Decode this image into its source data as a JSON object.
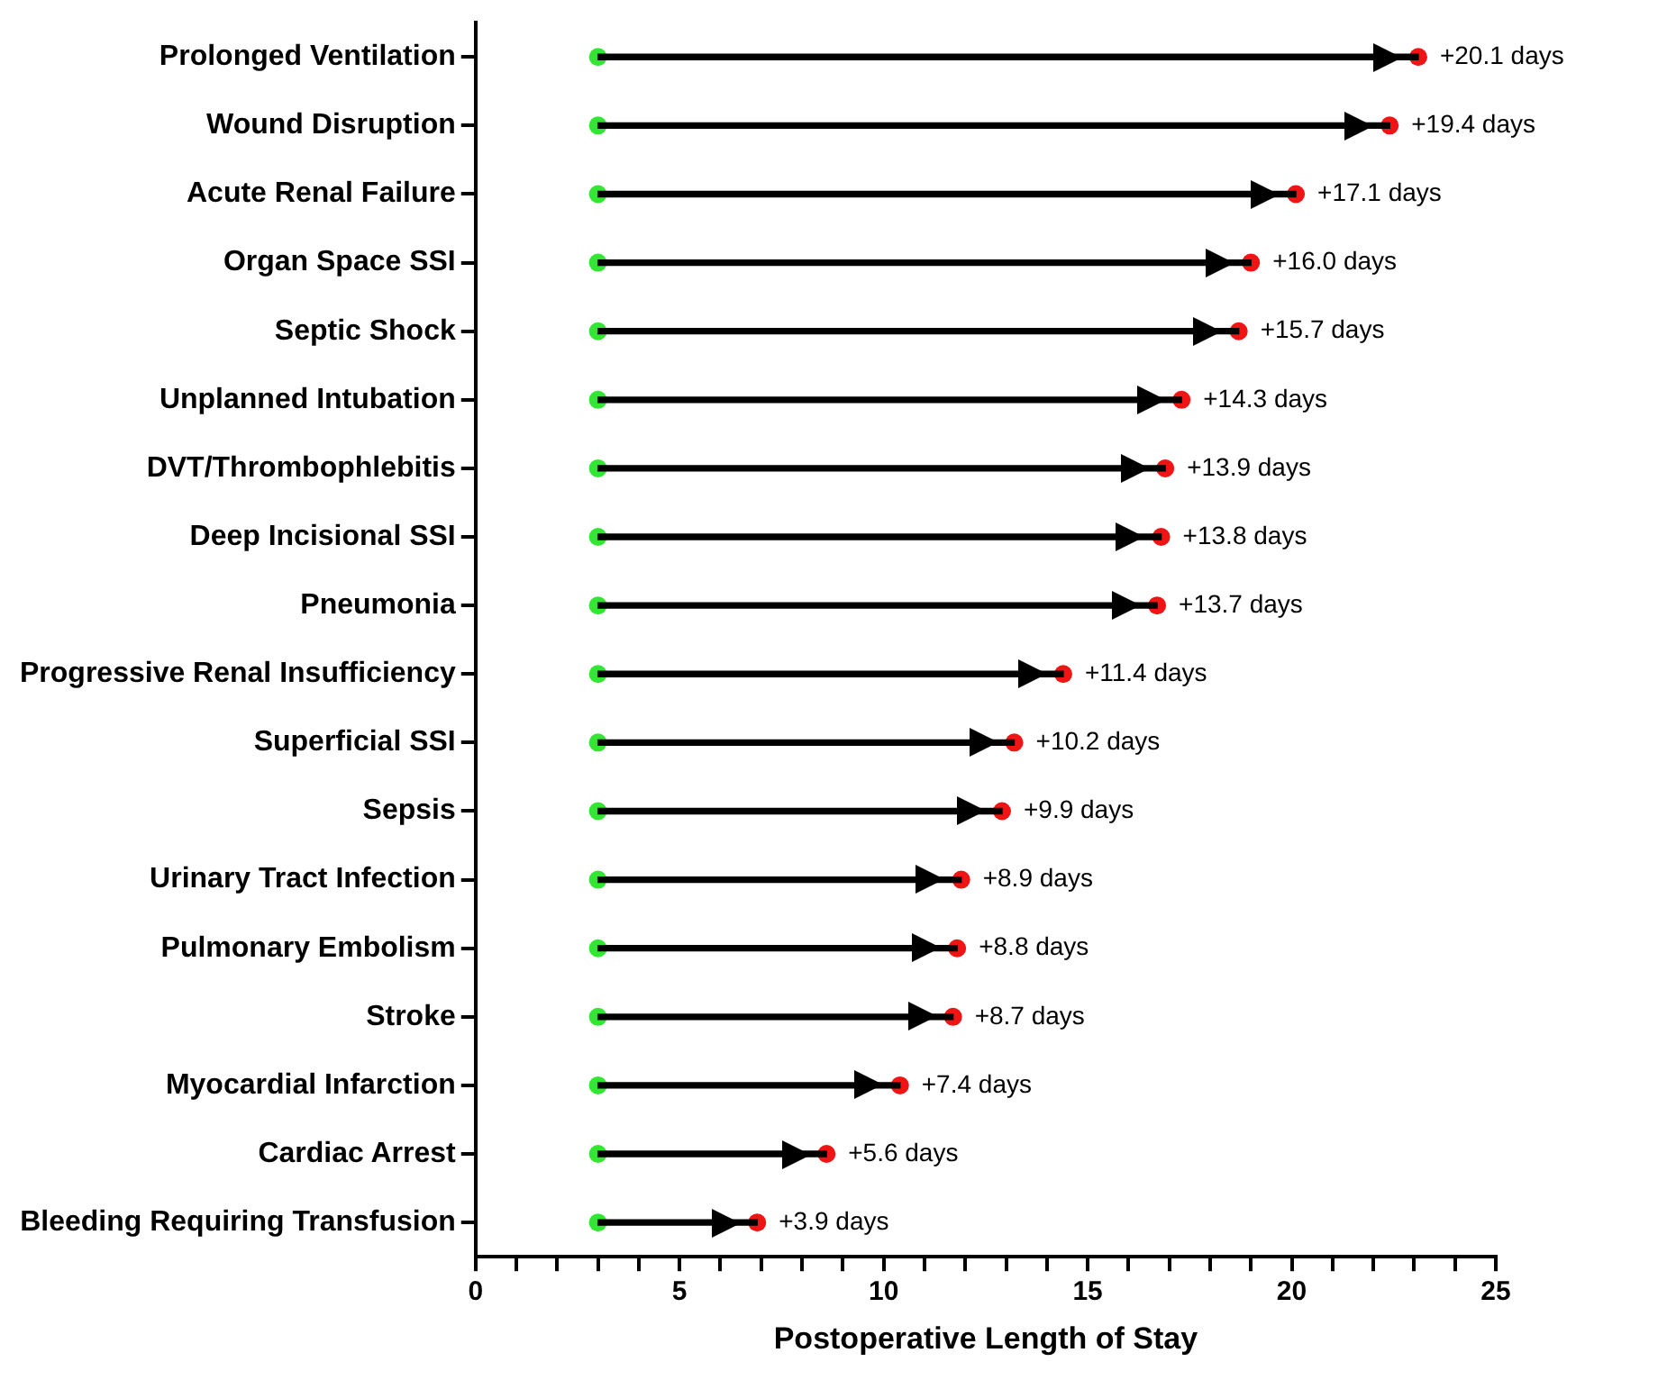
{
  "chart_data": {
    "type": "bar",
    "orientation": "horizontal",
    "xlabel": "Postoperative Length of Stay",
    "categories": [
      "Prolonged Ventilation",
      "Wound Disruption",
      "Acute Renal Failure",
      "Organ Space SSI",
      "Septic Shock",
      "Unplanned Intubation",
      "DVT/Thrombophlebitis",
      "Deep Incisional SSI",
      "Pneumonia",
      "Progressive Renal Insufficiency",
      "Superficial SSI",
      "Sepsis",
      "Urinary Tract Infection",
      "Pulmonary Embolism",
      "Stroke",
      "Myocardial Infarction",
      "Cardiac Arrest",
      "Bleeding Requiring Transfusion"
    ],
    "series": [
      {
        "type": "bar",
        "color": "#000000",
        "base": [
          3,
          3,
          3,
          3,
          3,
          3,
          3,
          3,
          3,
          3,
          3,
          3,
          3,
          3,
          3,
          3,
          3,
          3
        ],
        "values": [
          20.1,
          19.4,
          17.1,
          16.0,
          15.7,
          14.3,
          13.9,
          13.8,
          13.7,
          11.4,
          10.2,
          9.9,
          8.9,
          8.8,
          8.7,
          7.4,
          5.6,
          3.9
        ],
        "value_labels": [
          "+20.1 days",
          "+19.4 days",
          "+17.1 days",
          "+16.0 days",
          "+15.7 days",
          "+14.3 days",
          "+13.9 days",
          "+13.8 days",
          "+13.7 days",
          "+11.4 days",
          "+10.2 days",
          "+9.9 days",
          "+8.9 days",
          "+8.8 days",
          "+8.7 days",
          "+7.4 days",
          "+5.6 days",
          "+3.9 days"
        ]
      },
      {
        "type": "scatter",
        "color": "#33e633",
        "values": [
          3,
          3,
          3,
          3,
          3,
          3,
          3,
          3,
          3,
          3,
          3,
          3,
          3,
          3,
          3,
          3,
          3,
          3
        ]
      },
      {
        "type": "scatter",
        "color": "#f01414",
        "values": [
          23.1,
          22.4,
          20.1,
          19.0,
          18.7,
          17.3,
          16.9,
          16.8,
          16.7,
          14.4,
          13.2,
          12.9,
          11.9,
          11.8,
          11.7,
          10.4,
          8.6,
          6.9
        ]
      }
    ],
    "marker": "circle",
    "xlim": [
      0,
      25
    ],
    "xticks": [
      0,
      {
        "value": 1,
        "label": null
      },
      {
        "value": 2,
        "label": null
      },
      {
        "value": 3,
        "label": null
      },
      {
        "value": 4,
        "label": null
      },
      5,
      {
        "value": 6,
        "label": null
      },
      {
        "value": 7,
        "label": null
      },
      {
        "value": 8,
        "label": null
      },
      {
        "value": 9,
        "label": null
      },
      10,
      {
        "value": 11,
        "label": null
      },
      {
        "value": 12,
        "label": null
      },
      {
        "value": 13,
        "label": null
      },
      {
        "value": 14,
        "label": null
      },
      15,
      {
        "value": 16,
        "label": null
      },
      {
        "value": 17,
        "label": null
      },
      {
        "value": 18,
        "label": null
      },
      {
        "value": 19,
        "label": null
      },
      20,
      {
        "value": 21,
        "label": null
      },
      {
        "value": 22,
        "label": null
      },
      {
        "value": 23,
        "label": null
      },
      {
        "value": 24,
        "label": null
      },
      25
    ],
    "grid": false,
    "legend": false
  }
}
